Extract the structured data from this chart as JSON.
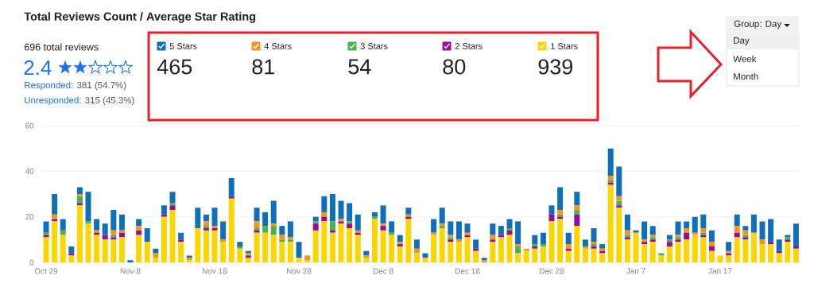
{
  "chart_data": {
    "type": "bar",
    "stacked": true,
    "title": "Total Reviews Count / Average Star Rating",
    "annotations": [
      "696 total reviews",
      "2.4",
      "Responded:",
      "381 (54.7%)",
      "Unresponded:",
      "315 (45.3%)",
      "465",
      "81",
      "54",
      "80",
      "939",
      "Group: Day",
      "Day",
      "Week",
      "Month"
    ],
    "categories": [
      "Oct 29",
      null,
      null,
      null,
      null,
      null,
      null,
      null,
      null,
      null,
      "Nov 8",
      null,
      null,
      null,
      null,
      null,
      null,
      null,
      null,
      null,
      "Nov 18",
      null,
      null,
      null,
      null,
      null,
      null,
      null,
      null,
      null,
      "Nov 28",
      null,
      null,
      null,
      null,
      null,
      null,
      null,
      null,
      null,
      "Dec 8",
      null,
      null,
      null,
      null,
      null,
      null,
      null,
      null,
      null,
      "Dec 18",
      null,
      null,
      null,
      null,
      null,
      null,
      null,
      null,
      null,
      "Dec 28",
      null,
      null,
      null,
      null,
      null,
      null,
      null,
      null,
      null,
      "Jan 7",
      null,
      null,
      null,
      null,
      null,
      null,
      null,
      null,
      null,
      "Jan 17",
      null,
      null,
      null,
      null,
      null,
      null,
      null,
      null,
      null
    ],
    "series": [
      {
        "name": "1 Stars",
        "color": "#fcd600",
        "values": [
          11,
          18,
          12,
          3,
          25,
          17,
          12,
          10,
          10,
          11,
          0,
          12,
          9,
          2,
          20,
          23,
          9,
          1,
          15,
          14,
          14,
          9,
          28,
          6,
          2,
          13,
          13,
          12,
          9,
          9,
          2,
          1,
          14,
          18,
          13,
          17,
          15,
          12,
          2,
          19,
          14,
          12,
          7,
          19,
          4,
          2,
          12,
          15,
          9,
          9,
          11,
          5,
          0,
          9,
          11,
          12,
          4,
          5,
          6,
          7,
          18,
          19,
          5,
          16,
          6,
          6,
          4,
          34,
          24,
          10,
          13,
          8,
          9,
          3,
          7,
          9,
          10,
          12,
          11,
          5,
          3,
          3,
          11,
          10,
          13,
          8,
          8,
          4,
          9,
          6
        ]
      },
      {
        "name": "2 Stars",
        "color": "#990a9c",
        "values": [
          1,
          1,
          0,
          1,
          1,
          0,
          1,
          2,
          1,
          2,
          0,
          2,
          0,
          0,
          1,
          2,
          1,
          0,
          0,
          1,
          1,
          0,
          1,
          0,
          1,
          1,
          0,
          0,
          0,
          0,
          0,
          0,
          3,
          2,
          1,
          1,
          2,
          1,
          0,
          0,
          2,
          0,
          1,
          1,
          0,
          0,
          0,
          0,
          1,
          0,
          1,
          1,
          0,
          1,
          1,
          2,
          0,
          0,
          1,
          0,
          3,
          1,
          1,
          5,
          0,
          1,
          1,
          1,
          1,
          1,
          0,
          1,
          1,
          0,
          2,
          1,
          3,
          0,
          1,
          2,
          0,
          1,
          2,
          1,
          0,
          0,
          1,
          1,
          1,
          1
        ]
      },
      {
        "name": "3 Stars",
        "color": "#4caf50",
        "values": [
          1,
          0,
          2,
          0,
          3,
          1,
          0,
          0,
          1,
          0,
          0,
          0,
          0,
          0,
          0,
          1,
          0,
          0,
          0,
          1,
          0,
          0,
          0,
          1,
          0,
          1,
          3,
          4,
          1,
          1,
          0,
          0,
          1,
          0,
          4,
          0,
          1,
          0,
          0,
          1,
          0,
          1,
          0,
          0,
          0,
          0,
          0,
          1,
          1,
          0,
          0,
          0,
          0,
          0,
          0,
          1,
          3,
          0,
          1,
          1,
          0,
          1,
          0,
          2,
          0,
          1,
          0,
          1,
          2,
          1,
          0,
          0,
          1,
          1,
          1,
          1,
          0,
          0,
          1,
          0,
          0,
          0,
          0,
          1,
          0,
          0,
          0,
          0,
          1,
          0
        ]
      },
      {
        "name": "4 Stars",
        "color": "#f7941d",
        "values": [
          0,
          2,
          0,
          0,
          1,
          0,
          1,
          0,
          2,
          1,
          0,
          2,
          0,
          2,
          0,
          0,
          0,
          1,
          0,
          2,
          1,
          1,
          0,
          0,
          1,
          3,
          0,
          1,
          2,
          1,
          0,
          2,
          0,
          2,
          0,
          1,
          0,
          1,
          1,
          0,
          1,
          0,
          1,
          1,
          2,
          0,
          1,
          1,
          1,
          1,
          1,
          0,
          1,
          2,
          0,
          0,
          1,
          1,
          0,
          0,
          0,
          2,
          2,
          2,
          1,
          1,
          1,
          2,
          2,
          2,
          0,
          1,
          1,
          0,
          0,
          1,
          2,
          1,
          2,
          2,
          0,
          1,
          3,
          2,
          0,
          2,
          0,
          0,
          0,
          0
        ]
      },
      {
        "name": "5 Stars",
        "color": "#0f6fb8",
        "values": [
          5,
          9,
          5,
          3,
          3,
          13,
          5,
          5,
          9,
          7,
          1,
          3,
          6,
          2,
          4,
          5,
          3,
          1,
          9,
          3,
          8,
          8,
          8,
          2,
          1,
          6,
          6,
          10,
          4,
          7,
          7,
          0,
          2,
          7,
          12,
          8,
          8,
          7,
          2,
          2,
          8,
          5,
          3,
          3,
          4,
          2,
          6,
          7,
          6,
          8,
          4,
          4,
          1,
          5,
          4,
          4,
          10,
          0,
          4,
          5,
          4,
          10,
          5,
          6,
          3,
          6,
          2,
          12,
          13,
          7,
          1,
          8,
          4,
          0,
          2,
          6,
          3,
          7,
          6,
          5,
          0,
          4,
          5,
          2,
          8,
          8,
          10,
          5,
          1,
          10
        ]
      }
    ],
    "ylim": [
      0,
      60
    ],
    "yticks": [
      0,
      20,
      40,
      60
    ],
    "grid": "y",
    "legend": "top"
  }
}
